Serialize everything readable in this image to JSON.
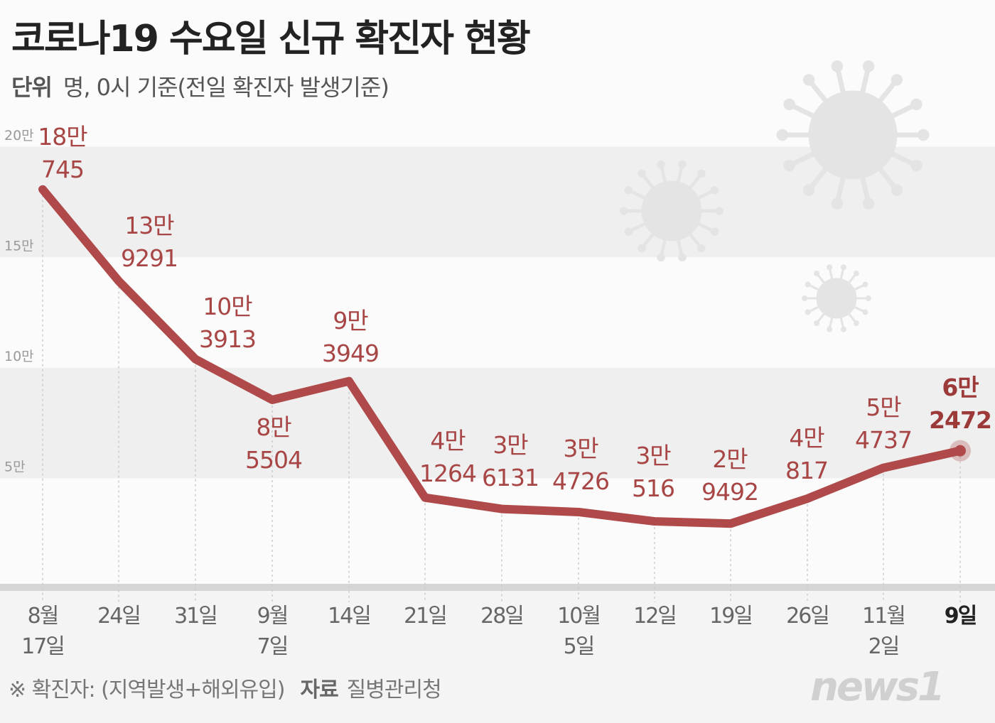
{
  "title": "코로나19 수요일 신규 확진자 현황",
  "subtitle": {
    "label": "단위",
    "text": "명, 0시 기준(전일 확진자 발생기준)"
  },
  "footer": {
    "note": "※ 확진자: (지역발생+해외유입)",
    "source_label": "자료",
    "source": "질병관리청"
  },
  "logo": "news1",
  "colors": {
    "line": "#b04a4a",
    "label": "#a84646",
    "last_label": "#9c3a3a",
    "band": "#efefef"
  },
  "chart_data": {
    "type": "line",
    "title": "코로나19 수요일 신규 확진자 현황",
    "ylabel": "명",
    "ylim": [
      0,
      200000
    ],
    "yticks": [
      {
        "v": 50000,
        "label": "5만"
      },
      {
        "v": 100000,
        "label": "10만"
      },
      {
        "v": 150000,
        "label": "15만"
      },
      {
        "v": 200000,
        "label": "20만"
      }
    ],
    "grid": "alternating bands",
    "categories": [
      [
        "8월",
        "17일"
      ],
      [
        "24일",
        ""
      ],
      [
        "31일",
        ""
      ],
      [
        "9월",
        "7일"
      ],
      [
        "14일",
        ""
      ],
      [
        "21일",
        ""
      ],
      [
        "28일",
        ""
      ],
      [
        "10월",
        "5일"
      ],
      [
        "12일",
        ""
      ],
      [
        "19일",
        ""
      ],
      [
        "26일",
        ""
      ],
      [
        "11월",
        "2일"
      ],
      [
        "9일",
        ""
      ]
    ],
    "values": [
      180745,
      139291,
      103913,
      85504,
      93949,
      41264,
      36131,
      34726,
      30516,
      29492,
      40817,
      54737,
      62472
    ],
    "data_labels": [
      [
        "18만",
        "745"
      ],
      [
        "13만",
        "9291"
      ],
      [
        "10만",
        "3913"
      ],
      [
        "8만",
        "5504"
      ],
      [
        "9만",
        "3949"
      ],
      [
        "4만",
        "1264"
      ],
      [
        "3만",
        "6131"
      ],
      [
        "3만",
        "4726"
      ],
      [
        "3만",
        "516"
      ],
      [
        "2만",
        "9492"
      ],
      [
        "4만",
        "817"
      ],
      [
        "5만",
        "4737"
      ],
      [
        "6만",
        "2472"
      ]
    ]
  }
}
